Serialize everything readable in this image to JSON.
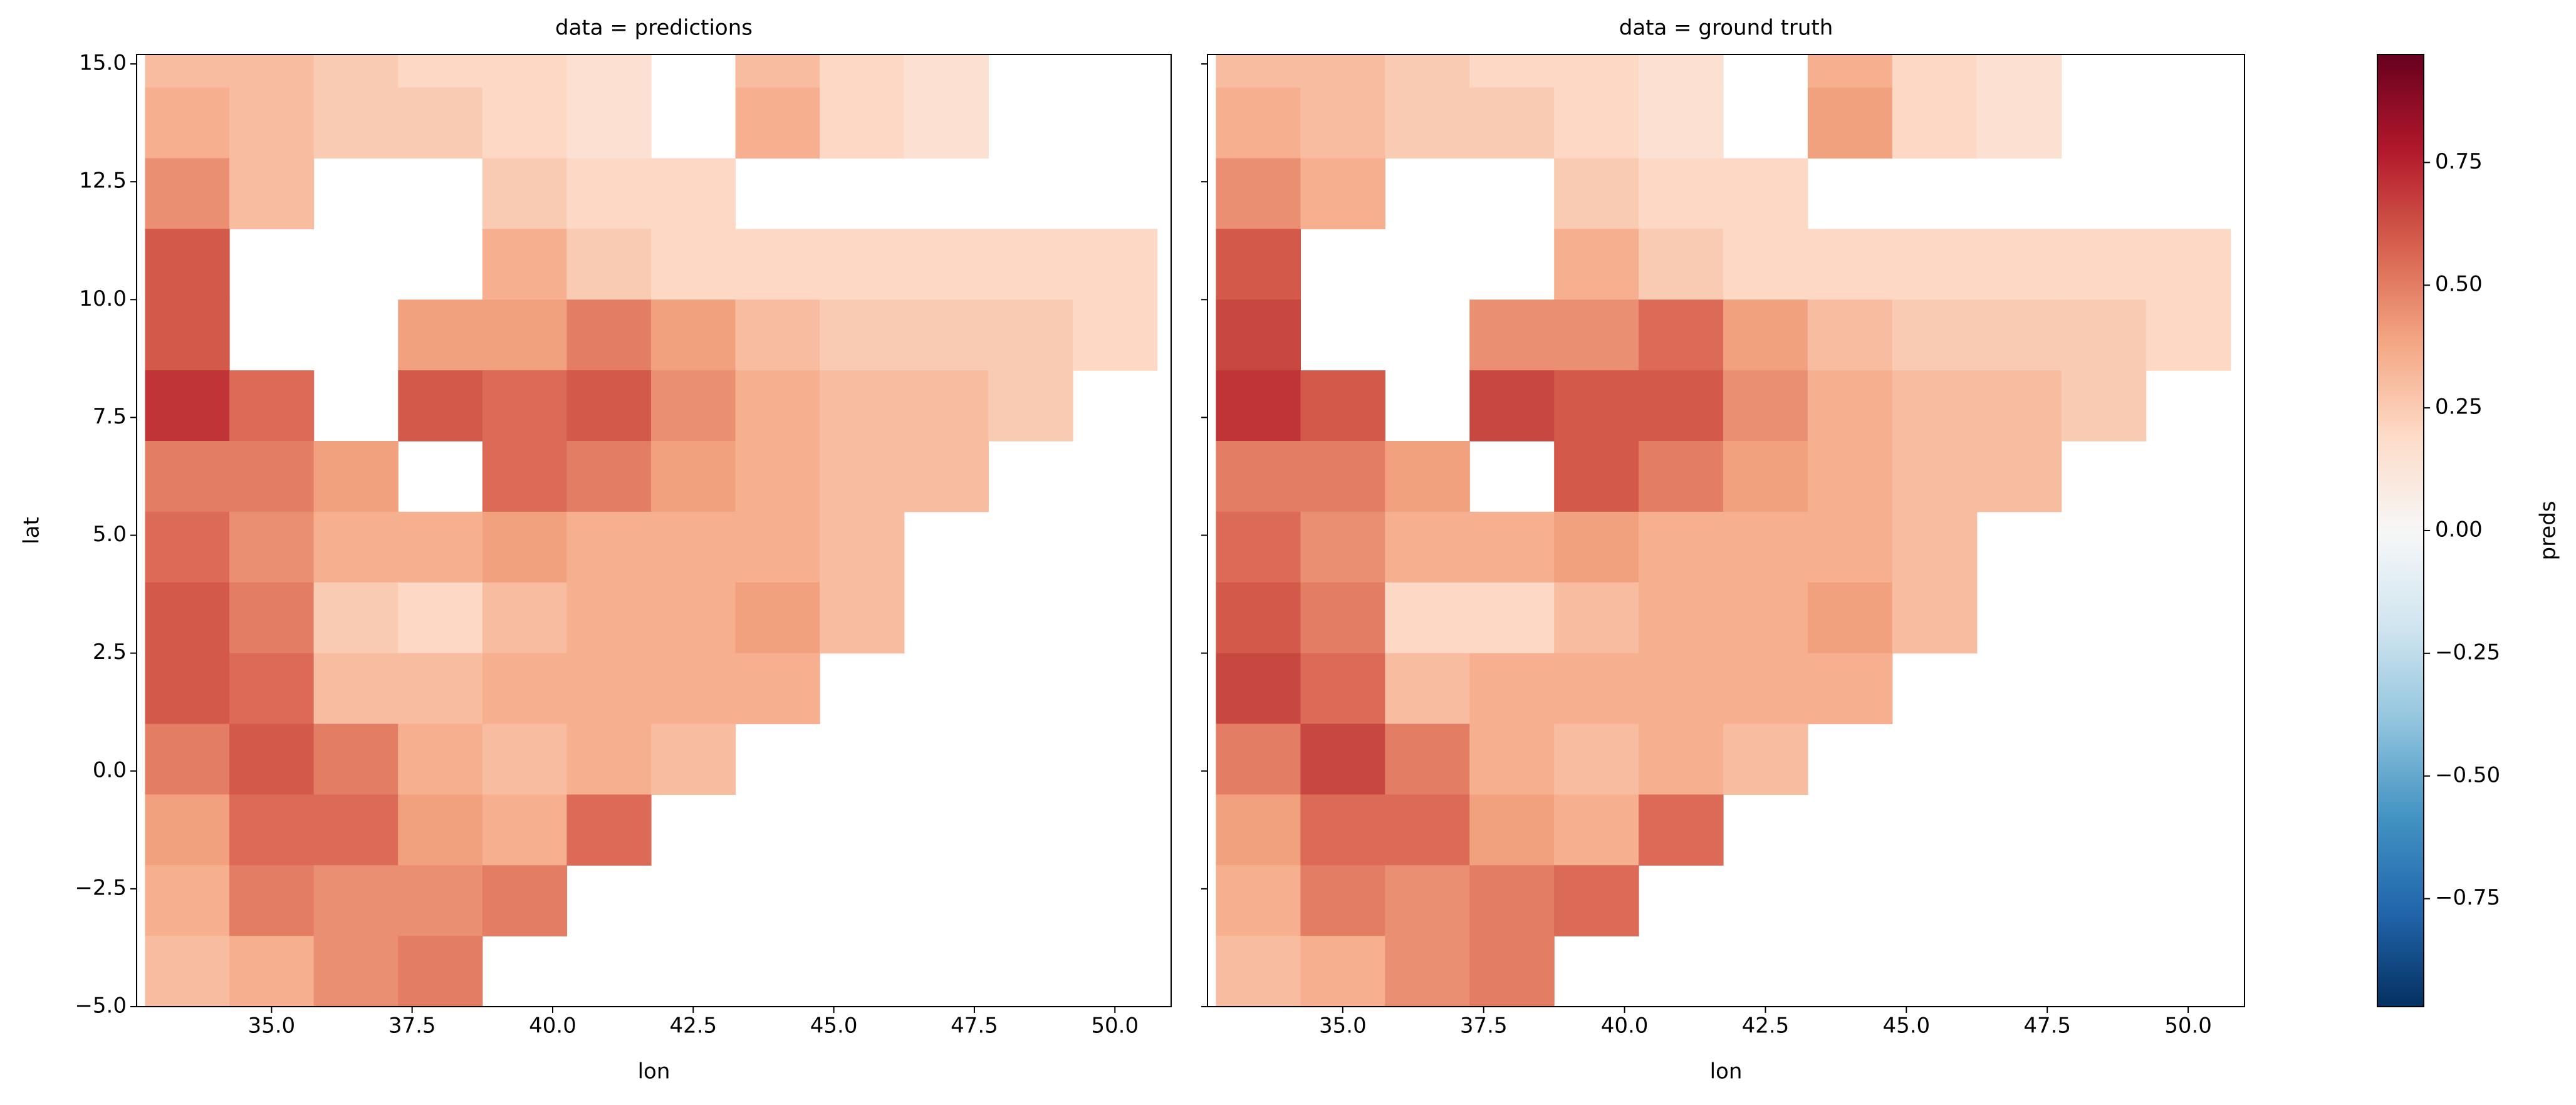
{
  "chart_data": {
    "type": "heatmap",
    "xlabel": "lon",
    "ylabel": "lat",
    "x": [
      33.5,
      35,
      36.5,
      38,
      39.5,
      41,
      42.5,
      44,
      45.5,
      47,
      48.5,
      50
    ],
    "y": [
      15.25,
      13.75,
      12.25,
      10.75,
      9.25,
      7.75,
      6.25,
      4.75,
      3.25,
      1.75,
      0.25,
      -1.25,
      -2.75,
      -4.25
    ],
    "xlim": [
      32.6,
      51.0
    ],
    "ylim": [
      -5.0,
      15.2
    ],
    "xticks": [
      {
        "value": 35,
        "label": "35.0"
      },
      37.5,
      {
        "value": 40,
        "label": "40.0"
      },
      42.5,
      {
        "value": 45,
        "label": "45.0"
      },
      47.5,
      {
        "value": 50,
        "label": "50.0"
      }
    ],
    "yticks": [
      {
        "value": -5,
        "label": "−5.0"
      },
      {
        "value": -2.5,
        "label": "−2.5"
      },
      {
        "value": 0,
        "label": "0.0"
      },
      2.5,
      {
        "value": 5,
        "label": "5.0"
      },
      7.5,
      {
        "value": 10,
        "label": "10.0"
      },
      12.5,
      {
        "value": 15,
        "label": "15.0"
      }
    ],
    "colorscale": [
      "#053061",
      "#2166ac",
      "#4393c3",
      "#92c5de",
      "#d1e5f0",
      "#f7f7f7",
      "#fddbc7",
      "#f4a582",
      "#d6604d",
      "#b2182b",
      "#67001f"
    ],
    "colorbar": {
      "label": "preds",
      "lim": [
        -0.97,
        0.97
      ],
      "ticks": [
        {
          "value": -0.75,
          "label": "−0.75"
        },
        {
          "value": -0.5,
          "label": "−0.50"
        },
        {
          "value": -0.25,
          "label": "−0.25"
        },
        {
          "value": 0,
          "label": "0.00"
        },
        0.25,
        {
          "value": 0.5,
          "label": "0.50"
        },
        0.75
      ]
    },
    "panels": [
      {
        "title": "data = predictions",
        "values": [
          [
            0.3,
            0.3,
            0.25,
            0.2,
            0.2,
            0.15,
            null,
            0.3,
            0.2,
            0.15,
            null,
            null
          ],
          [
            0.35,
            0.3,
            0.25,
            0.25,
            0.2,
            0.15,
            null,
            0.35,
            0.2,
            0.15,
            null,
            null
          ],
          [
            0.45,
            0.3,
            null,
            null,
            0.25,
            0.2,
            0.2,
            null,
            null,
            null,
            null,
            null
          ],
          [
            0.6,
            null,
            null,
            null,
            0.35,
            0.25,
            0.2,
            0.2,
            0.2,
            0.2,
            0.2,
            0.2
          ],
          [
            0.6,
            null,
            null,
            0.4,
            0.4,
            0.5,
            0.4,
            0.3,
            0.25,
            0.25,
            0.25,
            0.2
          ],
          [
            0.7,
            0.55,
            null,
            0.6,
            0.55,
            0.6,
            0.45,
            0.35,
            0.3,
            0.3,
            0.25,
            null
          ],
          [
            0.5,
            0.5,
            0.4,
            null,
            0.55,
            0.5,
            0.4,
            0.35,
            0.3,
            0.3,
            null,
            null
          ],
          [
            0.55,
            0.45,
            0.35,
            0.35,
            0.4,
            0.35,
            0.35,
            0.35,
            0.3,
            null,
            null,
            null
          ],
          [
            0.6,
            0.5,
            0.25,
            0.2,
            0.3,
            0.35,
            0.35,
            0.4,
            0.3,
            null,
            null,
            null
          ],
          [
            0.6,
            0.55,
            0.3,
            0.3,
            0.35,
            0.35,
            0.35,
            0.35,
            null,
            null,
            null,
            null
          ],
          [
            0.5,
            0.6,
            0.5,
            0.35,
            0.3,
            0.35,
            0.3,
            null,
            null,
            null,
            null,
            null
          ],
          [
            0.4,
            0.55,
            0.55,
            0.4,
            0.35,
            0.55,
            null,
            null,
            null,
            null,
            null,
            null
          ],
          [
            0.35,
            0.5,
            0.45,
            0.45,
            0.5,
            null,
            null,
            null,
            null,
            null,
            null,
            null
          ],
          [
            0.3,
            0.35,
            0.45,
            0.5,
            null,
            null,
            null,
            null,
            null,
            null,
            null,
            null
          ]
        ]
      },
      {
        "title": "data = ground truth",
        "values": [
          [
            0.3,
            0.3,
            0.25,
            0.2,
            0.2,
            0.15,
            null,
            0.35,
            0.2,
            0.15,
            null,
            null
          ],
          [
            0.35,
            0.3,
            0.25,
            0.25,
            0.2,
            0.15,
            null,
            0.4,
            0.2,
            0.15,
            null,
            null
          ],
          [
            0.45,
            0.35,
            null,
            null,
            0.25,
            0.2,
            0.2,
            null,
            null,
            null,
            null,
            null
          ],
          [
            0.6,
            null,
            null,
            null,
            0.35,
            0.25,
            0.2,
            0.2,
            0.2,
            0.2,
            0.2,
            0.2
          ],
          [
            0.65,
            null,
            null,
            0.45,
            0.45,
            0.55,
            0.4,
            0.3,
            0.25,
            0.25,
            0.25,
            0.2
          ],
          [
            0.7,
            0.6,
            null,
            0.65,
            0.6,
            0.6,
            0.45,
            0.35,
            0.3,
            0.3,
            0.25,
            null
          ],
          [
            0.5,
            0.5,
            0.4,
            null,
            0.6,
            0.5,
            0.4,
            0.35,
            0.3,
            0.3,
            null,
            null
          ],
          [
            0.55,
            0.45,
            0.35,
            0.35,
            0.4,
            0.35,
            0.35,
            0.35,
            0.3,
            null,
            null,
            null
          ],
          [
            0.6,
            0.5,
            0.2,
            0.2,
            0.3,
            0.35,
            0.35,
            0.4,
            0.3,
            null,
            null,
            null
          ],
          [
            0.65,
            0.55,
            0.3,
            0.35,
            0.35,
            0.35,
            0.35,
            0.35,
            null,
            null,
            null,
            null
          ],
          [
            0.5,
            0.65,
            0.5,
            0.35,
            0.3,
            0.35,
            0.3,
            null,
            null,
            null,
            null,
            null
          ],
          [
            0.4,
            0.55,
            0.55,
            0.4,
            0.35,
            0.55,
            null,
            null,
            null,
            null,
            null,
            null
          ],
          [
            0.35,
            0.5,
            0.45,
            0.5,
            0.55,
            null,
            null,
            null,
            null,
            null,
            null,
            null
          ],
          [
            0.3,
            0.35,
            0.45,
            0.5,
            null,
            null,
            null,
            null,
            null,
            null,
            null,
            null
          ]
        ]
      }
    ]
  }
}
